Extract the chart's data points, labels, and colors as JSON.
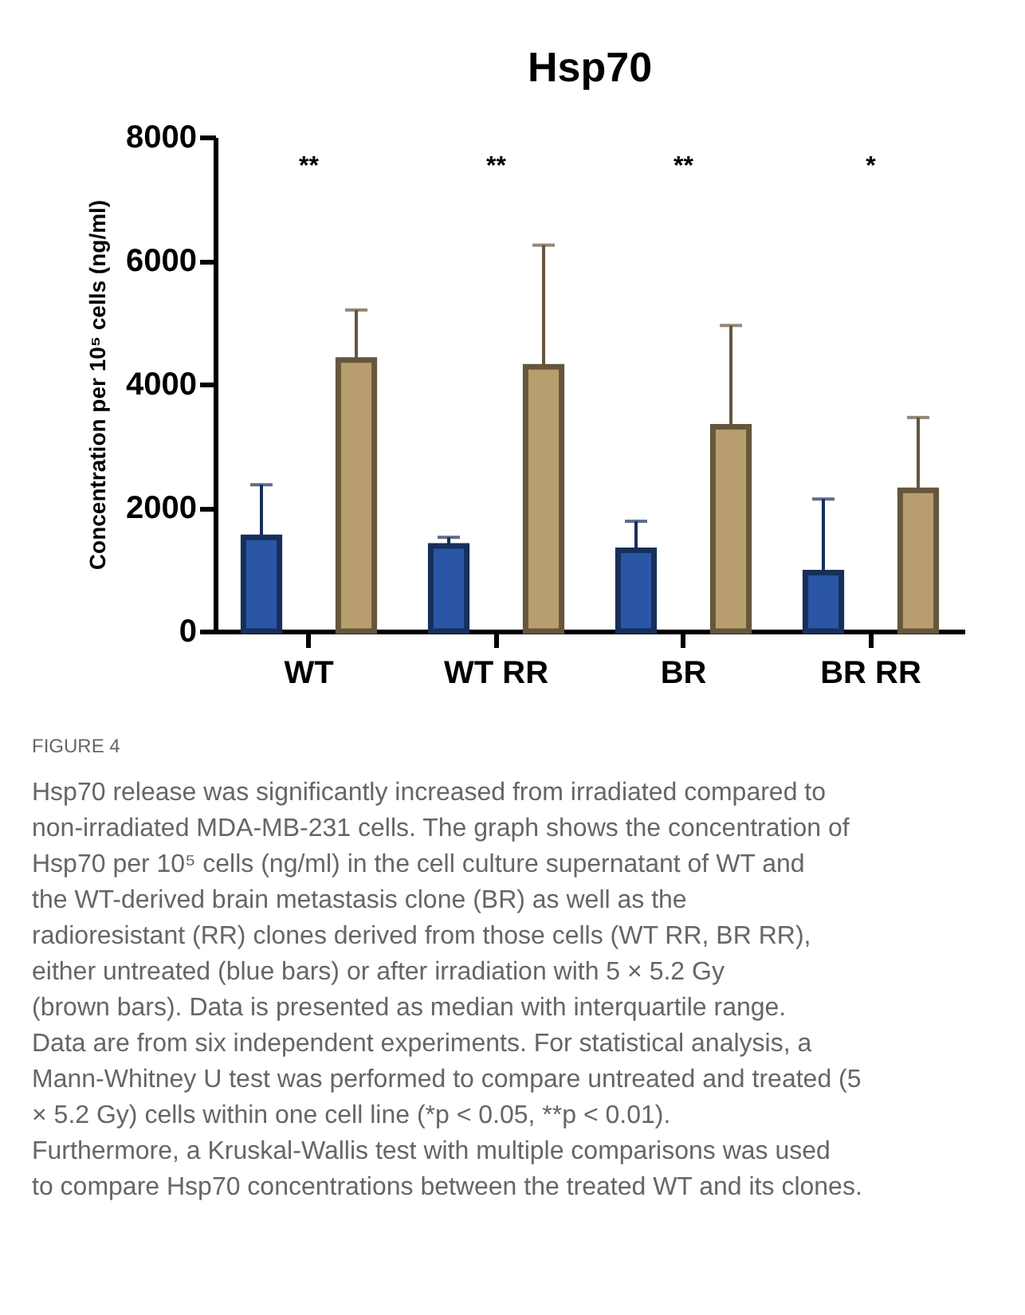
{
  "chart_data": {
    "type": "bar",
    "title": "Hsp70",
    "ylabel": "Concentration per 10⁵ cells (ng/ml)",
    "categories": [
      "WT",
      "WT RR",
      "BR",
      "BR RR"
    ],
    "series": [
      {
        "color": "#2b56a5",
        "values": [
          1520,
          1380,
          1310,
          950
        ],
        "errors": [
          [
            1520,
            2370
          ],
          [
            1380,
            1520
          ],
          [
            1310,
            1780
          ],
          [
            950,
            2140
          ]
        ]
      },
      {
        "color": "#b89e6e",
        "values": [
          4390,
          4280,
          3310,
          2280
        ],
        "errors": [
          [
            4390,
            5200
          ],
          [
            4280,
            6250
          ],
          [
            3310,
            4950
          ],
          [
            2280,
            3460
          ]
        ]
      }
    ],
    "ylim": [
      0,
      8000
    ],
    "yticks": [
      0,
      2000,
      4000,
      6000,
      8000
    ],
    "grid": false,
    "annotations": [
      "**",
      "**",
      "**",
      "*",
      "FIGURE 4",
      "Hsp70 release was significantly increased from irradiated compared to non-irradiated MDA-MB-231 cells. The graph shows the concentration of Hsp70 per 10⁵ cells (ng/ml) in the cell culture supernatant of WT and the WT-derived brain metastasis clone (BR) as well as the radioresistant (RR) clones derived from those cells (WT RR, BR RR), either untreated (blue bars) or after irradiation with 5 × 5.2 Gy (brown bars). Data is presented as median with interquartile range. Data are from six independent experiments. For statistical analysis, a Mann-Whitney U test was performed to compare untreated and treated (5 × 5.2 Gy) cells within one cell line (*p < 0.05, **p < 0.01). Furthermore, a Kruskal-Wallis test with multiple comparisons was used to compare Hsp70 concentrations between the treated WT and its clones."
    ]
  }
}
